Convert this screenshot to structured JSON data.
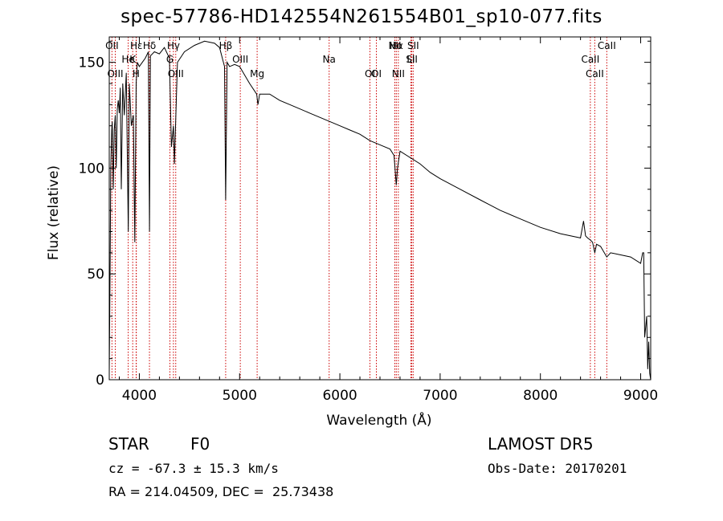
{
  "chart_data": {
    "type": "line",
    "title": "spec-57786-HD142554N261554B01_sp10-077.fits",
    "xlabel": "Wavelength (Å)",
    "ylabel": "Flux (relative)",
    "xlim": [
      3700,
      9100
    ],
    "ylim": [
      0,
      162
    ],
    "x_ticks": [
      4000,
      5000,
      6000,
      7000,
      8000,
      9000
    ],
    "y_ticks": [
      0,
      50,
      100,
      150
    ],
    "grid": false,
    "series": [
      {
        "color": "#000000",
        "x": [
          3700,
          3710,
          3715,
          3725,
          3730,
          3740,
          3750,
          3760,
          3770,
          3780,
          3790,
          3800,
          3810,
          3820,
          3835,
          3850,
          3870,
          3890,
          3900,
          3920,
          3940,
          3955,
          3968,
          3980,
          4000,
          4030,
          4060,
          4090,
          4101,
          4110,
          4150,
          4200,
          4250,
          4300,
          4320,
          4340,
          4350,
          4380,
          4450,
          4550,
          4650,
          4750,
          4800,
          4850,
          4861,
          4875,
          4900,
          4950,
          5000,
          5100,
          5170,
          5183,
          5200,
          5300,
          5400,
          5500,
          5600,
          5700,
          5800,
          5900,
          6000,
          6100,
          6200,
          6300,
          6400,
          6500,
          6540,
          6563,
          6575,
          6600,
          6700,
          6800,
          6900,
          7000,
          7200,
          7400,
          7600,
          7800,
          8000,
          8200,
          8400,
          8430,
          8450,
          8470,
          8498,
          8520,
          8542,
          8560,
          8600,
          8662,
          8700,
          8800,
          8900,
          9000,
          9020,
          9030,
          9040,
          9050,
          9060,
          9070,
          9080,
          9090,
          9100
        ],
        "y": [
          3,
          60,
          100,
          118,
          122,
          90,
          118,
          125,
          100,
          128,
          132,
          126,
          138,
          90,
          140,
          125,
          145,
          70,
          140,
          120,
          125,
          65,
          140,
          150,
          148,
          150,
          152,
          155,
          70,
          153,
          155,
          154,
          157,
          152,
          110,
          120,
          102,
          150,
          155,
          158,
          160,
          159,
          157,
          148,
          85,
          150,
          148,
          149,
          148,
          140,
          135,
          130,
          135,
          135,
          132,
          130,
          128,
          126,
          124,
          122,
          120,
          118,
          116,
          113,
          111,
          109,
          106,
          92,
          100,
          108,
          105,
          102,
          98,
          95,
          90,
          85,
          80,
          76,
          72,
          69,
          67,
          75,
          68,
          67,
          66,
          65,
          60,
          64,
          63,
          58,
          60,
          59,
          58,
          55,
          60,
          60,
          20,
          25,
          30,
          5,
          18,
          3,
          0
        ]
      }
    ],
    "line_labels": [
      {
        "label": "Hδ",
        "wl": 4101
      },
      {
        "label": "K",
        "wl": 3934
      },
      {
        "label": "H",
        "wl": 3968
      },
      {
        "label": "OII",
        "wl": 3727
      },
      {
        "label": "He",
        "wl": 3889
      },
      {
        "label": "OIII",
        "wl": 3760
      },
      {
        "label": "Hε",
        "wl": 3970
      },
      {
        "label": "G",
        "wl": 4305
      },
      {
        "label": "OIII",
        "wl": 4363
      },
      {
        "label": "Hγ",
        "wl": 4340
      },
      {
        "label": "OIII",
        "wl": 5007
      },
      {
        "label": "Mg",
        "wl": 5175
      },
      {
        "label": "Hβ",
        "wl": 4861
      },
      {
        "label": "Na",
        "wl": 5893
      },
      {
        "label": "OI",
        "wl": 6300
      },
      {
        "label": "Hα",
        "wl": 6563
      },
      {
        "label": "SII",
        "wl": 6717
      },
      {
        "label": "OI",
        "wl": 6364
      },
      {
        "label": "NII",
        "wl": 6548
      },
      {
        "label": "Li",
        "wl": 6708
      },
      {
        "label": "NII",
        "wl": 6583
      },
      {
        "label": "SII",
        "wl": 6731
      },
      {
        "label": "CaII",
        "wl": 8498
      },
      {
        "label": "CaII",
        "wl": 8542
      },
      {
        "label": "CaII",
        "wl": 8662
      }
    ],
    "line_color": "#cc0000"
  },
  "info": {
    "class": "STAR",
    "subclass": "F0",
    "survey": "LAMOST DR5",
    "cz": "cz = -67.3 ± 15.3 km/s",
    "obs_date": "Obs-Date: 20170201",
    "radec": "RA = 214.04509, DEC =  25.73438"
  }
}
